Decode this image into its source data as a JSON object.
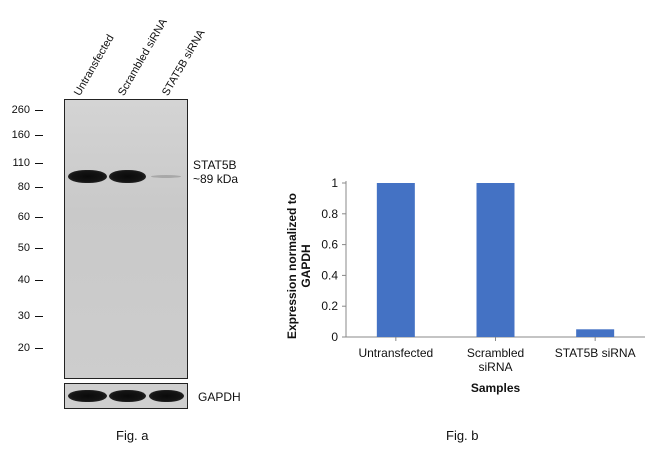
{
  "western_blot": {
    "lanes": [
      "Untransfected",
      "Scrambled siRNA",
      "STAT5B siRNA"
    ],
    "mw_markers": [
      "260",
      "160",
      "110",
      "80",
      "60",
      "50",
      "40",
      "30",
      "20"
    ],
    "target_label": "STAT5B",
    "target_size": "~89 kDa",
    "loading_control": "GAPDH",
    "caption": "Fig. a"
  },
  "chart_data": {
    "type": "bar",
    "categories": [
      "Untransfected",
      "Scrambled siRNA",
      "STAT5B siRNA"
    ],
    "category_lines": [
      [
        "Untransfected"
      ],
      [
        "Scrambled",
        "siRNA"
      ],
      [
        "STAT5B siRNA"
      ]
    ],
    "values": [
      1.0,
      1.0,
      0.05
    ],
    "title": "",
    "xlabel": "Samples",
    "ylabel_lines": [
      "Expression normalized to",
      "GAPDH"
    ],
    "ylim": [
      0,
      1
    ],
    "yticks": [
      "0",
      "0.2",
      "0.4",
      "0.6",
      "0.8",
      "1"
    ],
    "grid": false,
    "bar_color": "#4472C4",
    "caption": "Fig. b"
  }
}
